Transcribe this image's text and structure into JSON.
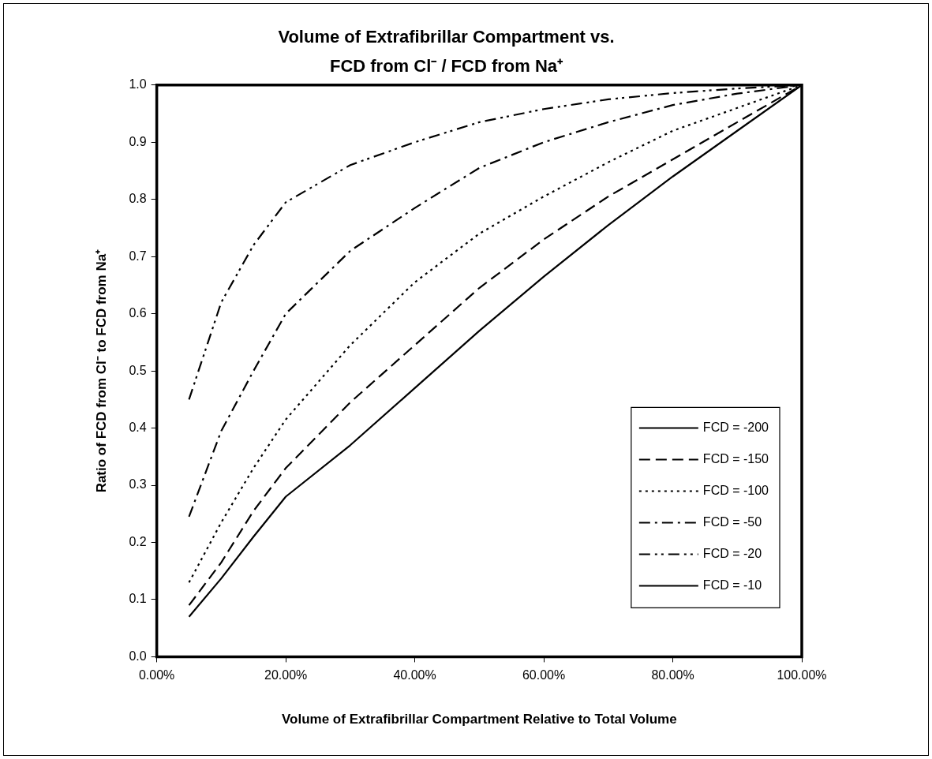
{
  "chart_data": {
    "type": "line",
    "title": "Volume of Extrafibrillar Compartment vs.",
    "subtitle": "FCD from Cl⁻ / FCD from Na⁺",
    "xlabel": "Volume of Extrafibrillar Compartment Relative to Total Volume",
    "ylabel": "Ratio of FCD from Cl⁻ to FCD from Na⁺",
    "x": [
      5,
      10,
      15,
      20,
      30,
      40,
      50,
      60,
      70,
      80,
      90,
      100
    ],
    "series": [
      {
        "name": "FCD = -200",
        "color": "#000000",
        "line_style": "solid",
        "values": [
          0.07,
          0.137,
          0.21,
          0.28,
          0.37,
          0.47,
          0.57,
          0.665,
          0.755,
          0.84,
          0.92,
          1.0
        ]
      },
      {
        "name": "FCD = -150",
        "color": "#000000",
        "line_style": "dashed",
        "values": [
          0.09,
          0.165,
          0.255,
          0.33,
          0.445,
          0.545,
          0.645,
          0.73,
          0.805,
          0.87,
          0.935,
          1.0
        ]
      },
      {
        "name": "FCD = -100",
        "color": "#000000",
        "line_style": "dotted",
        "values": [
          0.13,
          0.235,
          0.33,
          0.415,
          0.545,
          0.655,
          0.74,
          0.805,
          0.865,
          0.92,
          0.96,
          1.0
        ]
      },
      {
        "name": "FCD = -50",
        "color": "#000000",
        "line_style": "dashdot",
        "values": [
          0.245,
          0.395,
          0.5,
          0.6,
          0.71,
          0.785,
          0.855,
          0.9,
          0.935,
          0.965,
          0.985,
          1.0
        ]
      },
      {
        "name": "FCD = -20",
        "color": "#000000",
        "line_style": "dashdotdot",
        "values": [
          0.45,
          0.62,
          0.72,
          0.795,
          0.86,
          0.9,
          0.935,
          0.958,
          0.975,
          0.986,
          0.994,
          1.0
        ]
      },
      {
        "name": "FCD = -10",
        "color": "#000000",
        "line_style": "solid",
        "values": [
          null,
          null,
          null,
          null,
          null,
          null,
          null,
          null,
          null,
          null,
          null,
          null
        ]
      }
    ],
    "xlim": [
      0,
      100
    ],
    "xticks": [
      {
        "value": 0,
        "label": "0.00%"
      },
      {
        "value": 20,
        "label": "20.00%"
      },
      {
        "value": 40,
        "label": "40.00%"
      },
      {
        "value": 60,
        "label": "60.00%"
      },
      {
        "value": 80,
        "label": "80.00%"
      },
      {
        "value": 100,
        "label": "100.00%"
      }
    ],
    "ylim": [
      0,
      1
    ],
    "yticks": [
      {
        "value": 0,
        "label": "0.0"
      },
      {
        "value": 0.1,
        "label": "0.1"
      },
      {
        "value": 0.2,
        "label": "0.2"
      },
      {
        "value": 0.3,
        "label": "0.3"
      },
      {
        "value": 0.4,
        "label": "0.4"
      },
      {
        "value": 0.5,
        "label": "0.5"
      },
      {
        "value": 0.6,
        "label": "0.6"
      },
      {
        "value": 0.7,
        "label": "0.7"
      },
      {
        "value": 0.8,
        "label": "0.8"
      },
      {
        "value": 0.9,
        "label": "0.9"
      },
      {
        "value": 1,
        "label": "1.0"
      }
    ],
    "grid": false,
    "marker": "none",
    "legend": "bottom right"
  }
}
